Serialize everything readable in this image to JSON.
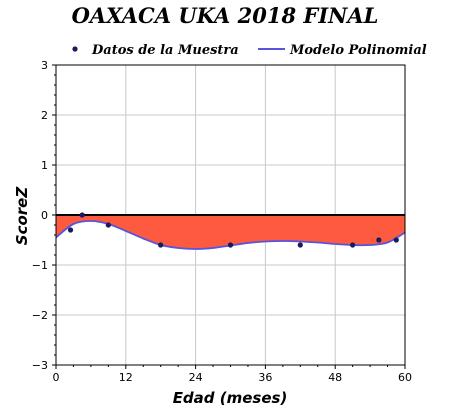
{
  "chart_data": {
    "type": "line",
    "title": "OAXACA UKA 2018 FINAL",
    "xlabel": "Edad (meses)",
    "ylabel": "ScoreZ",
    "xlim": [
      0,
      60
    ],
    "ylim": [
      -3,
      3
    ],
    "x_ticks": [
      "0",
      "12",
      "24",
      "36",
      "48",
      "60"
    ],
    "y_ticks": [
      "3",
      "2",
      "1",
      "0",
      "−1",
      "−2",
      "−3"
    ],
    "grid": true,
    "legend": {
      "position": "top",
      "entries": [
        "Datos de la Muestra",
        "Modelo Polinomial"
      ]
    },
    "series": [
      {
        "name": "Datos de la Muestra",
        "kind": "scatter",
        "color": "#1a1a5e",
        "x": [
          2.5,
          4.5,
          9,
          18,
          30,
          42,
          51,
          55.5,
          58.5
        ],
        "y": [
          -0.3,
          0.0,
          -0.2,
          -0.6,
          -0.6,
          -0.6,
          -0.6,
          -0.5,
          -0.5
        ]
      },
      {
        "name": "Modelo Polinomial",
        "kind": "line",
        "color": "#5555dd",
        "x": [
          0,
          3,
          6,
          9,
          12,
          15,
          18,
          21,
          24,
          27,
          30,
          33,
          36,
          39,
          42,
          45,
          48,
          51,
          54,
          57,
          60
        ],
        "y": [
          -0.45,
          -0.18,
          -0.12,
          -0.18,
          -0.32,
          -0.47,
          -0.6,
          -0.66,
          -0.68,
          -0.66,
          -0.61,
          -0.56,
          -0.53,
          -0.52,
          -0.53,
          -0.55,
          -0.58,
          -0.6,
          -0.6,
          -0.55,
          -0.35
        ]
      }
    ],
    "fill_color": "#fe5a3f",
    "reference_line": {
      "y": 0,
      "color": "#000000"
    }
  }
}
